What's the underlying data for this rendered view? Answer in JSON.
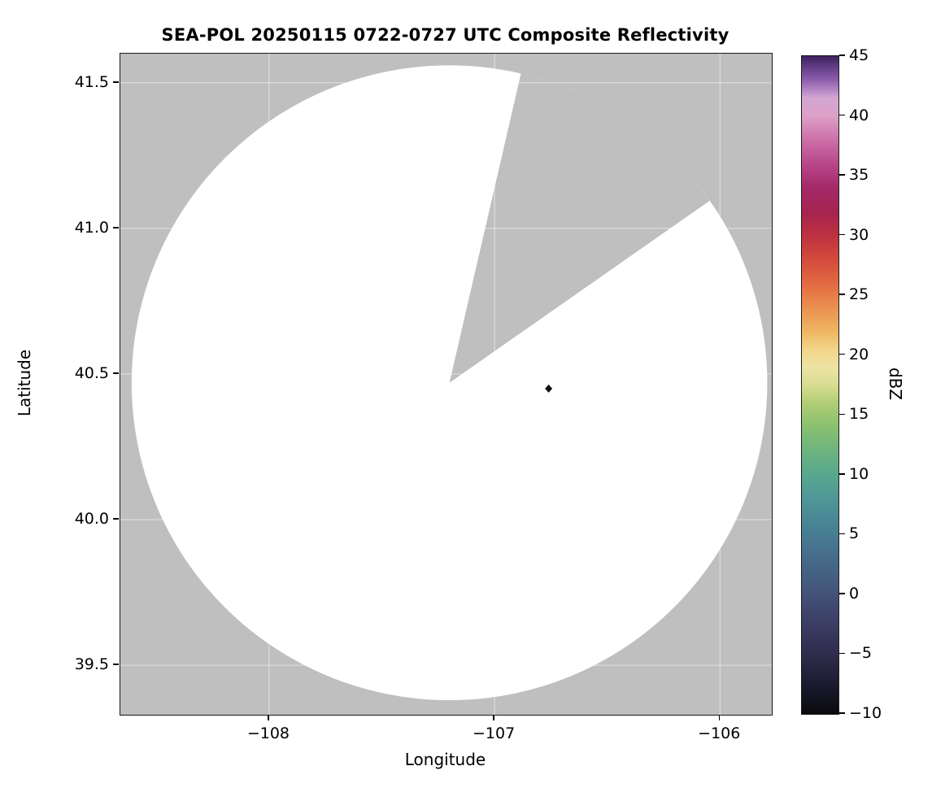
{
  "figure": {
    "title": "SEA-POL 20250115 0722-0727 UTC Composite Reflectivity",
    "xlabel": "Longitude",
    "ylabel": "Latitude"
  },
  "axes": {
    "xlim": [
      -108.66,
      -105.77
    ],
    "ylim": [
      39.33,
      41.6
    ],
    "x_ticks": [
      {
        "value": -108,
        "label": "−108"
      },
      {
        "value": -107,
        "label": "−107"
      },
      {
        "value": -106,
        "label": "−106"
      }
    ],
    "y_ticks": [
      {
        "value": 39.5,
        "label": "39.5"
      },
      {
        "value": 40.0,
        "label": "40.0"
      },
      {
        "value": 40.5,
        "label": "40.5"
      },
      {
        "value": 41.0,
        "label": "41.0"
      },
      {
        "value": 41.5,
        "label": "41.5"
      }
    ],
    "no_data_color": "#bfbfbf",
    "coverage_color": "#ffffff",
    "grid_color": "rgba(255,255,255,0.55)",
    "marker_color": "#101016"
  },
  "colorbar": {
    "label": "dBZ",
    "min": -10,
    "max": 45,
    "ticks": [
      {
        "value": 45,
        "label": "45"
      },
      {
        "value": 40,
        "label": "40"
      },
      {
        "value": 35,
        "label": "35"
      },
      {
        "value": 30,
        "label": "30"
      },
      {
        "value": 25,
        "label": "25"
      },
      {
        "value": 20,
        "label": "20"
      },
      {
        "value": 15,
        "label": "15"
      },
      {
        "value": 10,
        "label": "10"
      },
      {
        "value": 5,
        "label": "5"
      },
      {
        "value": 0,
        "label": "0"
      },
      {
        "value": -5,
        "label": "−5"
      },
      {
        "value": -10,
        "label": "−10"
      }
    ],
    "stops": [
      {
        "value": -10,
        "color": "#0a0a0c"
      },
      {
        "value": -8,
        "color": "#17172a"
      },
      {
        "value": -6,
        "color": "#272641"
      },
      {
        "value": -4,
        "color": "#343356"
      },
      {
        "value": -2,
        "color": "#3d4168"
      },
      {
        "value": 0,
        "color": "#435278"
      },
      {
        "value": 2,
        "color": "#456384"
      },
      {
        "value": 4,
        "color": "#46748e"
      },
      {
        "value": 6,
        "color": "#498595"
      },
      {
        "value": 8,
        "color": "#4f9798"
      },
      {
        "value": 10,
        "color": "#58a78f"
      },
      {
        "value": 12,
        "color": "#6db47e"
      },
      {
        "value": 14,
        "color": "#89c070"
      },
      {
        "value": 16,
        "color": "#b1cd74"
      },
      {
        "value": 17.5,
        "color": "#d8dc91"
      },
      {
        "value": 19,
        "color": "#eee3a4"
      },
      {
        "value": 20.5,
        "color": "#f2d588"
      },
      {
        "value": 22,
        "color": "#efb562"
      },
      {
        "value": 24,
        "color": "#ea8f4e"
      },
      {
        "value": 26,
        "color": "#e26a42"
      },
      {
        "value": 28,
        "color": "#d44a3c"
      },
      {
        "value": 30,
        "color": "#bd3140"
      },
      {
        "value": 32,
        "color": "#a52350"
      },
      {
        "value": 34,
        "color": "#a42a68"
      },
      {
        "value": 36,
        "color": "#b8478b"
      },
      {
        "value": 38,
        "color": "#cc6fa9"
      },
      {
        "value": 40,
        "color": "#dda0c6"
      },
      {
        "value": 41.5,
        "color": "#d3a6d4"
      },
      {
        "value": 43,
        "color": "#8d5fae"
      },
      {
        "value": 45,
        "color": "#3f2160"
      }
    ]
  },
  "chart_data": {
    "type": "radar_composite_reflectivity_map",
    "title": "SEA-POL 20250115 0722-0727 UTC Composite Reflectivity",
    "xlabel": "Longitude",
    "ylabel": "Latitude",
    "xlim": [
      -108.66,
      -105.77
    ],
    "ylim": [
      39.33,
      41.6
    ],
    "x_tick_values": [
      -108,
      -107,
      -106
    ],
    "y_tick_values": [
      39.5,
      40.0,
      40.5,
      41.0,
      41.5
    ],
    "grid": true,
    "colorbar": {
      "label": "dBZ",
      "min": -10,
      "max": 45,
      "tick_step": 5
    },
    "radar": {
      "center_lon": -107.2,
      "center_lat": 40.47,
      "range_deg_lon": 1.41,
      "range_deg_lat": 1.09
    },
    "coverage": "white disk = scanned area (no echoes above threshold)",
    "no_data_sector_azimuth_deg": [
      13,
      55
    ],
    "echoes": [
      {
        "lon": -106.76,
        "lat": 40.45,
        "dbz_approx": -8,
        "marker": "small dark diamond pixel cluster"
      }
    ]
  }
}
